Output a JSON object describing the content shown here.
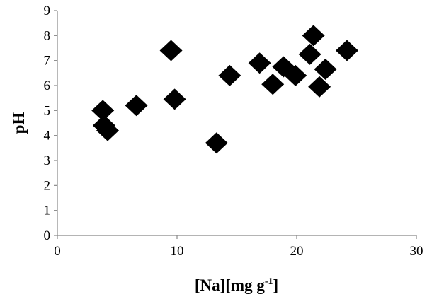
{
  "chart_data": {
    "type": "scatter",
    "xlabel_main": "[Na][mg g",
    "xlabel_sup": "-1",
    "xlabel_close": "]",
    "ylabel": "pH",
    "xlim": [
      0,
      30
    ],
    "ylim": [
      0,
      9
    ],
    "xticks": [
      0,
      10,
      20,
      30
    ],
    "yticks": [
      0,
      1,
      2,
      3,
      4,
      5,
      6,
      7,
      8,
      9
    ],
    "grid": false,
    "legend": "none",
    "marker": "diamond",
    "marker_color": "#000000",
    "points": [
      {
        "x": 3.8,
        "y": 5.0
      },
      {
        "x": 3.9,
        "y": 4.4
      },
      {
        "x": 4.2,
        "y": 4.2
      },
      {
        "x": 6.6,
        "y": 5.2
      },
      {
        "x": 9.5,
        "y": 7.4
      },
      {
        "x": 9.8,
        "y": 5.45
      },
      {
        "x": 13.3,
        "y": 3.7
      },
      {
        "x": 14.4,
        "y": 6.4
      },
      {
        "x": 16.9,
        "y": 6.9
      },
      {
        "x": 18.0,
        "y": 6.05
      },
      {
        "x": 18.9,
        "y": 6.75
      },
      {
        "x": 19.9,
        "y": 6.4
      },
      {
        "x": 21.1,
        "y": 7.25
      },
      {
        "x": 21.4,
        "y": 8.0
      },
      {
        "x": 21.9,
        "y": 5.95
      },
      {
        "x": 22.4,
        "y": 6.65
      },
      {
        "x": 24.2,
        "y": 7.4
      }
    ]
  }
}
